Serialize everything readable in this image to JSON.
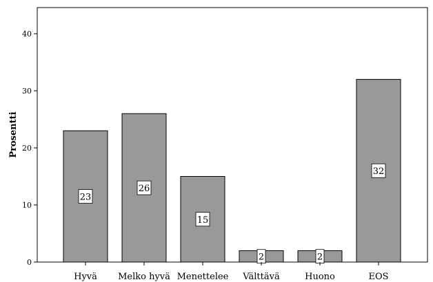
{
  "chart_data": {
    "type": "bar",
    "categories": [
      "Hyvä",
      "Melko hyvä",
      "Menettelee",
      "Välttävä",
      "Huono",
      "EOS"
    ],
    "values": [
      23,
      26,
      15,
      2,
      2,
      32
    ],
    "data_labels": [
      "23",
      "26",
      "15",
      "2",
      "2",
      "32"
    ],
    "xlabel": "",
    "ylabel": "Prosentti",
    "ylim": [
      0,
      46
    ],
    "yticks": [
      0,
      10,
      20,
      30,
      40
    ],
    "ytick_labels": [
      "0",
      "10",
      "20",
      "30",
      "40"
    ],
    "grid": false,
    "legend": "none",
    "bar_color": "#999999",
    "bar_edge_color": "#000000",
    "label_box_color": "#ffffff"
  }
}
